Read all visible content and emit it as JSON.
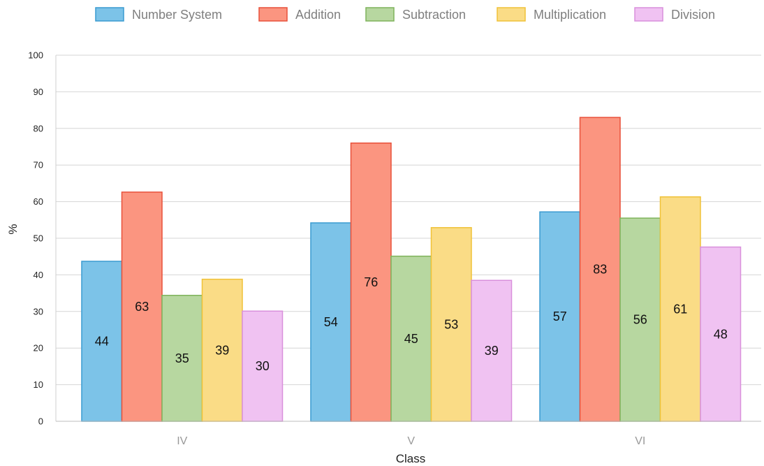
{
  "chart_data": {
    "type": "bar",
    "categories": [
      "IV",
      "V",
      "VI"
    ],
    "series": [
      {
        "name": "Number System",
        "values": [
          44,
          54,
          57
        ],
        "color": "#7cc3e8",
        "stroke": "#3a9bd1"
      },
      {
        "name": "Addition",
        "values": [
          63,
          76,
          83
        ],
        "color": "#fb9580",
        "stroke": "#e8503a"
      },
      {
        "name": "Subtraction",
        "values": [
          35,
          45,
          56
        ],
        "color": "#b7d7a0",
        "stroke": "#7fb35c"
      },
      {
        "name": "Multiplication",
        "values": [
          39,
          53,
          61
        ],
        "color": "#fadc86",
        "stroke": "#f0c238"
      },
      {
        "name": "Division",
        "values": [
          30,
          39,
          48
        ],
        "color": "#f0c2f2",
        "stroke": "#d990dc"
      }
    ],
    "bar_tops": [
      [
        43.7,
        54.2,
        57.2
      ],
      [
        62.6,
        76.0,
        83.0
      ],
      [
        34.4,
        45.1,
        55.5
      ],
      [
        38.8,
        52.9,
        61.3
      ],
      [
        30.1,
        38.5,
        47.6
      ]
    ],
    "xlabel": "Class",
    "ylabel": "%",
    "ylim": [
      0,
      100
    ],
    "yticks": [
      "0",
      "10",
      "20",
      "30",
      "40",
      "50",
      "60",
      "70",
      "80",
      "90",
      "100"
    ],
    "grid": true,
    "legend_position": "top"
  }
}
